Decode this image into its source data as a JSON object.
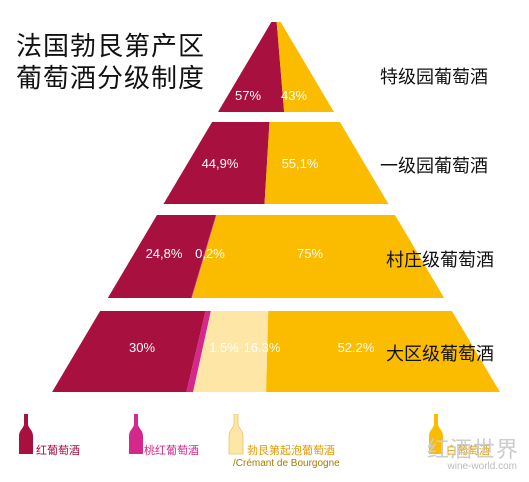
{
  "chart_data": {
    "type": "bar",
    "title_line1": "法国勃艮第产区",
    "title_line2": "葡萄酒分级制度",
    "categories": [
      "特级园葡萄酒",
      "一级园葡萄酒",
      "村庄级葡萄酒",
      "大区级葡萄酒"
    ],
    "series": [
      {
        "name": "红葡萄酒",
        "values": [
          57,
          44.9,
          24.8,
          30
        ],
        "labels": [
          "57%",
          "44,9%",
          "24,8%",
          "30%"
        ],
        "color": "#a8103f"
      },
      {
        "name": "桃红葡萄酒",
        "values": [
          0,
          0,
          0.2,
          1.5
        ],
        "labels": [
          "",
          "",
          "0,2%",
          "1.5%"
        ],
        "color": "#d4288a"
      },
      {
        "name": "勃艮第起泡葡萄酒",
        "values": [
          0,
          0,
          0,
          16.3
        ],
        "labels": [
          "",
          "",
          "",
          "16.3%"
        ],
        "color": "#fde6a6"
      },
      {
        "name": "白葡萄酒",
        "values": [
          43,
          55.1,
          75,
          52.2
        ],
        "labels": [
          "43%",
          "55,1%",
          "75%",
          "52.2%"
        ],
        "color": "#fbbc00"
      }
    ],
    "legend": {
      "placement": "bottom",
      "items": [
        {
          "label": "红葡萄酒",
          "color": "#a8103f"
        },
        {
          "label": "桃红葡萄酒",
          "color": "#d4288a"
        },
        {
          "label": "勃艮第起泡葡萄酒",
          "sublabel": "/Crémant de Bourgogne",
          "color": "#fde6a6",
          "label_color": "#e39a00"
        },
        {
          "label": "白葡萄酒",
          "color": "#fbbc00",
          "label_color": "#e39a00"
        }
      ]
    }
  },
  "watermark": {
    "text": "红酒世界",
    "sub": "wine-world.com"
  }
}
